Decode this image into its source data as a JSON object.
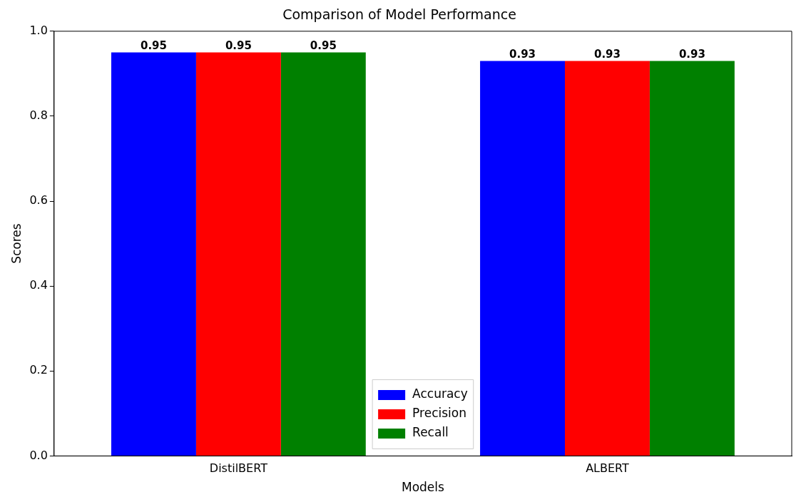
{
  "chart_data": {
    "type": "bar",
    "title": "Comparison of Model Performance",
    "xlabel": "Models",
    "ylabel": "Scores",
    "categories": [
      "DistilBERT",
      "ALBERT"
    ],
    "series": [
      {
        "name": "Accuracy",
        "color": "#0000ff",
        "values": [
          0.95,
          0.93
        ]
      },
      {
        "name": "Precision",
        "color": "#ff0000",
        "values": [
          0.95,
          0.93
        ]
      },
      {
        "name": "Recall",
        "color": "#008000",
        "values": [
          0.95,
          0.93
        ]
      }
    ],
    "ylim": [
      0,
      1
    ],
    "yticks": [
      {
        "value": 0,
        "label": "0.0"
      },
      {
        "value": 0.2,
        "label": "0.2"
      },
      {
        "value": 0.4,
        "label": "0.4"
      },
      {
        "value": 0.6,
        "label": "0.6"
      },
      {
        "value": 0.8,
        "label": "0.8"
      },
      {
        "value": 1,
        "label": "1.0"
      }
    ],
    "data_labels": true,
    "legend": "bottom",
    "grid": false
  }
}
